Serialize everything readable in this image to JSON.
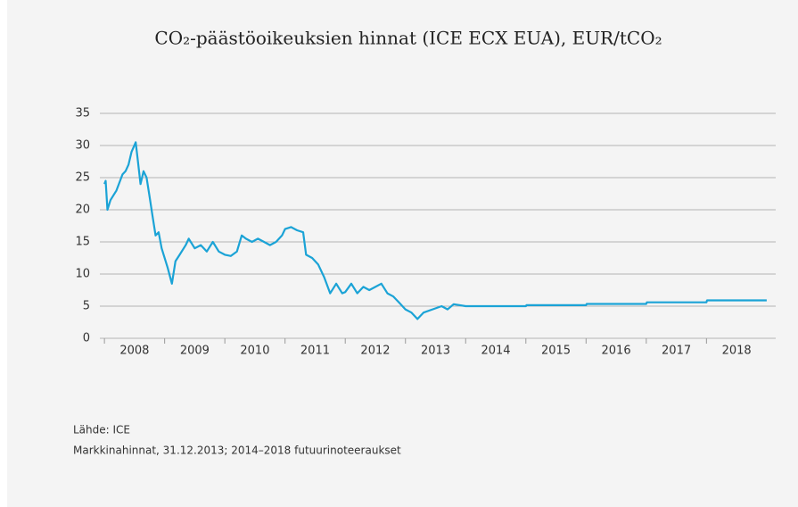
{
  "chart_data": {
    "type": "line",
    "title": "CO₂-päästöoikeuksien hinnat (ICE ECX EUA), EUR/tCO₂",
    "notes": [
      "Lähde: ICE",
      "Markkinahinnat, 31.12.2013; 2014–2018 futuurinoteeraukset"
    ],
    "xlim": [
      2007.85,
      2019.15
    ],
    "xticks": [
      {
        "value": 2008,
        "label": "2008"
      },
      {
        "value": 2009,
        "label": "2009"
      },
      {
        "value": 2010,
        "label": "2010"
      },
      {
        "value": 2011,
        "label": "2011"
      },
      {
        "value": 2012,
        "label": "2012"
      },
      {
        "value": 2013,
        "label": "2013"
      },
      {
        "value": 2014,
        "label": "2014"
      },
      {
        "value": 2015,
        "label": "2015"
      },
      {
        "value": 2016,
        "label": "2016"
      },
      {
        "value": 2017,
        "label": "2017"
      },
      {
        "value": 2018,
        "label": "2018"
      }
    ],
    "ylim": [
      0,
      35
    ],
    "yticks": [
      0,
      5,
      10,
      15,
      20,
      25,
      30,
      35
    ],
    "grid": true,
    "x": [
      2008.0,
      2008.02,
      2008.05,
      2008.1,
      2008.2,
      2008.3,
      2008.35,
      2008.4,
      2008.45,
      2008.52,
      2008.55,
      2008.6,
      2008.65,
      2008.7,
      2008.75,
      2008.8,
      2008.85,
      2008.9,
      2008.95,
      2009.05,
      2009.12,
      2009.18,
      2009.25,
      2009.35,
      2009.4,
      2009.5,
      2009.6,
      2009.7,
      2009.8,
      2009.9,
      2010.0,
      2010.1,
      2010.2,
      2010.28,
      2010.35,
      2010.45,
      2010.55,
      2010.65,
      2010.75,
      2010.85,
      2010.95,
      2011.0,
      2011.1,
      2011.2,
      2011.3,
      2011.35,
      2011.45,
      2011.55,
      2011.65,
      2011.75,
      2011.85,
      2011.95,
      2012.0,
      2012.1,
      2012.2,
      2012.3,
      2012.4,
      2012.5,
      2012.6,
      2012.7,
      2012.8,
      2012.9,
      2013.0,
      2013.1,
      2013.2,
      2013.3,
      2013.45,
      2013.6,
      2013.7,
      2013.8,
      2014.0,
      2015.0,
      2015.01,
      2016.0,
      2016.01,
      2017.0,
      2017.01,
      2018.0,
      2018.01,
      2019.0
    ],
    "series": [
      {
        "name": "EUA",
        "color": "#1ba3d6",
        "values": [
          24,
          24.5,
          20,
          21.5,
          23,
          25.5,
          26,
          27,
          29,
          30.5,
          28,
          24,
          26,
          25,
          22,
          19,
          16,
          16.5,
          14,
          11,
          8.5,
          12,
          13,
          14.5,
          15.5,
          14,
          14.5,
          13.5,
          15,
          13.5,
          13,
          12.8,
          13.5,
          16,
          15.5,
          15,
          15.5,
          15,
          14.5,
          15,
          16,
          17,
          17.3,
          16.8,
          16.5,
          13,
          12.5,
          11.5,
          9.5,
          7,
          8.5,
          7,
          7.2,
          8.5,
          7,
          8,
          7.5,
          8,
          8.5,
          7,
          6.5,
          5.5,
          4.5,
          4,
          3,
          4,
          4.5,
          5,
          4.5,
          5.3,
          5.0,
          5.0,
          5.15,
          5.15,
          5.35,
          5.35,
          5.6,
          5.6,
          5.9,
          5.9
        ]
      }
    ]
  }
}
